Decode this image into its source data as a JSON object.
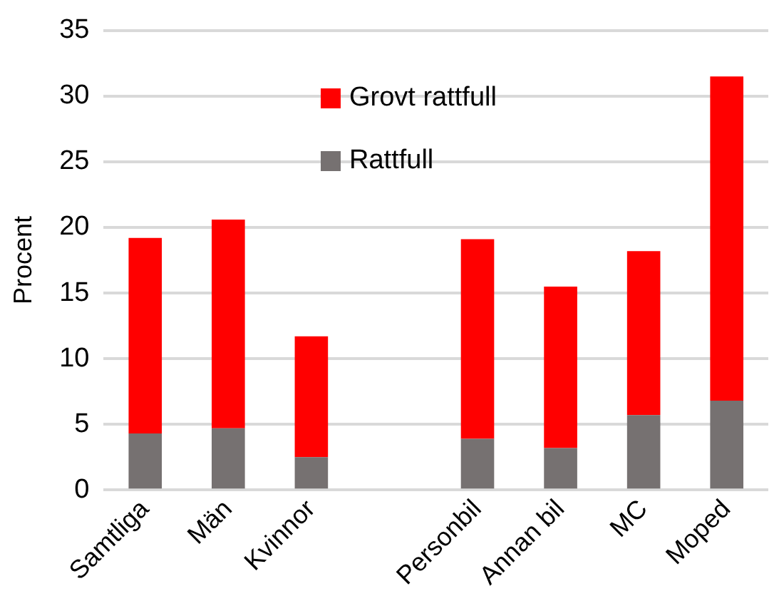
{
  "chart_data": {
    "type": "bar",
    "stacked": true,
    "ylabel": "Procent",
    "categories": [
      "Samtliga",
      "Män",
      "Kvinnor",
      null,
      "Personbil",
      "Annan bil",
      "MC",
      "Moped"
    ],
    "series": [
      {
        "name": "Rattfull",
        "color": "#767171",
        "values": [
          4.3,
          4.7,
          2.5,
          null,
          3.9,
          3.2,
          5.7,
          6.8
        ]
      },
      {
        "name": "Grovt rattfull",
        "color": "#ff0000",
        "values": [
          14.9,
          15.9,
          9.2,
          null,
          15.2,
          12.3,
          12.5,
          24.7
        ]
      }
    ],
    "ylim": [
      0,
      35
    ],
    "yticks": [
      0,
      5,
      10,
      15,
      20,
      25,
      30,
      35
    ],
    "grid": "y",
    "legend": "top"
  }
}
